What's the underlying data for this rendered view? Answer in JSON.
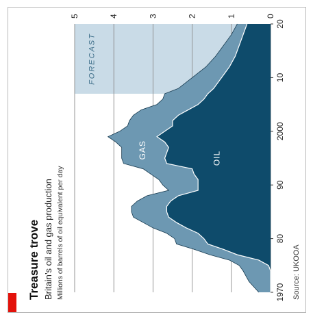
{
  "colors": {
    "gas": "#6d98b2",
    "oil": "#0e4b6b",
    "forecast": "#c9dbe7",
    "accent": "#e3120b",
    "grid": "#8a8a8a"
  },
  "chart_data": {
    "type": "area",
    "title": "Treasure trove",
    "subtitle": "Britain’s oil and gas production",
    "units_label": "Millions of barrels of oil equivalent per day",
    "source": "Source: UKOOA",
    "x_tick_labels": [
      {
        "x": 1970,
        "label": "1970"
      },
      {
        "x": 1980,
        "label": "80"
      },
      {
        "x": 1990,
        "label": "90"
      },
      {
        "x": 2000,
        "label": "2000"
      },
      {
        "x": 2010,
        "label": "10"
      },
      {
        "x": 2020,
        "label": "20"
      }
    ],
    "y_ticks": [
      0,
      1,
      2,
      3,
      4,
      5
    ],
    "xlim": [
      1970,
      2020
    ],
    "ylim": [
      0,
      5
    ],
    "forecast_range": [
      2007,
      2020
    ],
    "forecast_label": "FORECAST",
    "grid": true,
    "stacked": true,
    "series": [
      {
        "name": "OIL",
        "x": [
          1970,
          1972,
          1974,
          1975,
          1976,
          1977,
          1978,
          1979,
          1980,
          1981,
          1982,
          1983,
          1984,
          1985,
          1986,
          1987,
          1988,
          1989,
          1990,
          1991,
          1992,
          1993,
          1994,
          1995,
          1996,
          1997,
          1998,
          1999,
          2000,
          2001,
          2002,
          2003,
          2004,
          2005,
          2006,
          2007,
          2008,
          2010,
          2012,
          2014,
          2016,
          2018,
          2020
        ],
        "values": [
          0.0,
          0.0,
          0.0,
          0.05,
          0.3,
          0.85,
          1.2,
          1.6,
          1.7,
          1.85,
          2.15,
          2.4,
          2.6,
          2.65,
          2.65,
          2.55,
          2.35,
          1.85,
          1.85,
          1.85,
          1.95,
          2.0,
          2.65,
          2.7,
          2.65,
          2.6,
          2.7,
          2.9,
          2.7,
          2.5,
          2.5,
          2.35,
          2.1,
          1.85,
          1.7,
          1.6,
          1.45,
          1.25,
          1.05,
          0.9,
          0.8,
          0.7,
          0.6
        ]
      },
      {
        "name": "GAS",
        "x": [
          1970,
          1972,
          1974,
          1975,
          1976,
          1977,
          1978,
          1979,
          1980,
          1981,
          1982,
          1983,
          1984,
          1985,
          1986,
          1987,
          1988,
          1989,
          1990,
          1991,
          1992,
          1993,
          1994,
          1995,
          1996,
          1997,
          1998,
          1999,
          2000,
          2001,
          2002,
          2003,
          2004,
          2005,
          2006,
          2007,
          2008,
          2010,
          2012,
          2014,
          2016,
          2018,
          2020
        ],
        "values": [
          0.3,
          0.55,
          0.7,
          0.75,
          0.75,
          0.7,
          0.75,
          0.8,
          0.75,
          0.8,
          0.85,
          0.85,
          0.9,
          0.9,
          0.9,
          0.85,
          0.8,
          0.75,
          0.9,
          1.0,
          1.1,
          1.25,
          1.1,
          1.1,
          1.15,
          1.2,
          1.25,
          1.25,
          1.15,
          1.15,
          1.1,
          1.15,
          1.2,
          1.05,
          1.05,
          1.1,
          0.9,
          0.75,
          0.6,
          0.5,
          0.4,
          0.3,
          0.25
        ]
      }
    ]
  }
}
